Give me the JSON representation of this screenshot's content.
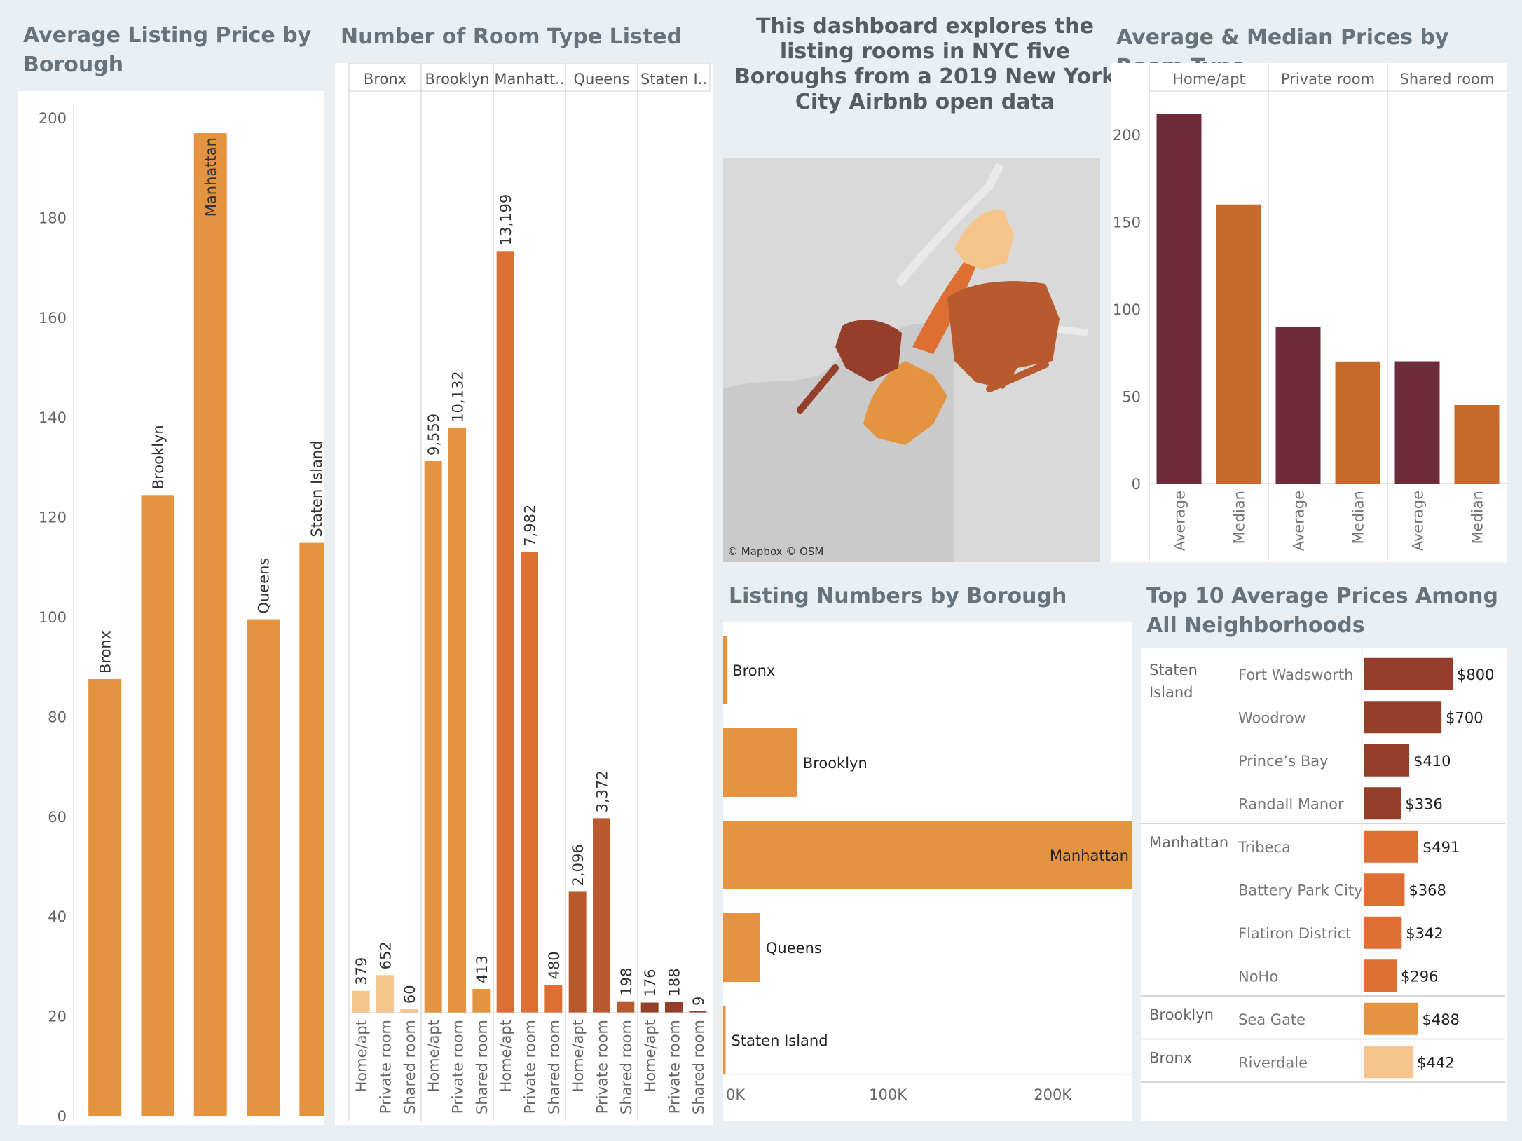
{
  "dashboard": {
    "intro_text": "This dashboard explores the listing rooms in NYC five Boroughs from a 2019 New York City Airbnb open data",
    "map_credit": "© Mapbox  © OSM",
    "colors": {
      "background": "#e9eff2",
      "orange": "#e49440",
      "light_orange": "#f5c58c",
      "mid_orange": "#dd6f34",
      "dark_orange": "#b85a2e",
      "brown_red": "#953f2b",
      "maroon": "#6e2c3a",
      "median_orange": "#c56a2c"
    }
  },
  "chart_data": [
    {
      "id": "avg_price_borough",
      "type": "bar",
      "title": "Average Listing Price by Borough",
      "categories": [
        "Bronx",
        "Brooklyn",
        "Manhattan",
        "Queens",
        "Staten Island"
      ],
      "values": [
        87.5,
        124.4,
        196.9,
        99.5,
        114.8
      ],
      "ylim": [
        0,
        200
      ],
      "yticks": [
        0,
        20,
        40,
        60,
        80,
        100,
        120,
        140,
        160,
        180,
        200
      ],
      "grid": false
    },
    {
      "id": "room_type_count",
      "type": "bar",
      "title": "Number of Room Type Listed",
      "groups": [
        {
          "label": "Bronx",
          "room_types": [
            "Home/apt",
            "Private room",
            "Shared room"
          ],
          "values": [
            379,
            652,
            60
          ],
          "value_labels": [
            "379",
            "652",
            "60"
          ]
        },
        {
          "label": "Brooklyn",
          "room_types": [
            "Home/apt",
            "Private room",
            "Shared room"
          ],
          "values": [
            9559,
            10132,
            413
          ],
          "value_labels": [
            "9,559",
            "10,132",
            "413"
          ]
        },
        {
          "label": "Manhatt..",
          "room_types": [
            "Home/apt",
            "Private room",
            "Shared room"
          ],
          "values": [
            13199,
            7982,
            480
          ],
          "value_labels": [
            "13,199",
            "7,982",
            "480"
          ]
        },
        {
          "label": "Queens",
          "room_types": [
            "Home/apt",
            "Private room",
            "Shared room"
          ],
          "values": [
            2096,
            3372,
            198
          ],
          "value_labels": [
            "2,096",
            "3,372",
            "198"
          ]
        },
        {
          "label": "Staten I..",
          "room_types": [
            "Home/apt",
            "Private room",
            "Shared room"
          ],
          "values": [
            176,
            188,
            9
          ],
          "value_labels": [
            "176",
            "188",
            "9"
          ]
        }
      ],
      "ylim": [
        0,
        15000
      ]
    },
    {
      "id": "avg_median_price_room_type",
      "type": "bar",
      "title": "Average & Median Prices by Room Type",
      "groups": [
        {
          "label": "Home/apt",
          "measures": [
            "Average",
            "Median"
          ],
          "values": [
            211.8,
            160
          ]
        },
        {
          "label": "Private room",
          "measures": [
            "Average",
            "Median"
          ],
          "values": [
            89.8,
            70
          ]
        },
        {
          "label": "Shared room",
          "measures": [
            "Average",
            "Median"
          ],
          "values": [
            70.1,
            45
          ]
        }
      ],
      "ylim": [
        0,
        225
      ],
      "yticks": [
        0,
        50,
        100,
        150,
        200
      ]
    },
    {
      "id": "listing_numbers_borough",
      "type": "bar",
      "orientation": "horizontal",
      "title": "Listing Numbers by Borough",
      "categories": [
        "Bronx",
        "Brooklyn",
        "Manhattan",
        "Queens",
        "Staten Island"
      ],
      "values": [
        2200,
        45000,
        248000,
        22500,
        1500
      ],
      "xlim": [
        0,
        248000
      ],
      "xticks": [
        0,
        100000,
        200000
      ],
      "xtick_labels": [
        "0K",
        "100K",
        "200K"
      ]
    },
    {
      "id": "top10_neighborhoods",
      "type": "bar",
      "orientation": "horizontal",
      "title": "Top 10 Average Prices Among All Neighborhoods",
      "sections": [
        {
          "borough": "Staten Island",
          "rows": [
            {
              "neighborhood": "Fort Wadsworth",
              "value": 800,
              "label": "$800"
            },
            {
              "neighborhood": "Woodrow",
              "value": 700,
              "label": "$700"
            },
            {
              "neighborhood": "Prince’s Bay",
              "value": 410,
              "label": "$410"
            },
            {
              "neighborhood": "Randall Manor",
              "value": 336,
              "label": "$336"
            }
          ]
        },
        {
          "borough": "Manhattan",
          "rows": [
            {
              "neighborhood": "Tribeca",
              "value": 491,
              "label": "$491"
            },
            {
              "neighborhood": "Battery Park City",
              "value": 368,
              "label": "$368"
            },
            {
              "neighborhood": "Flatiron District",
              "value": 342,
              "label": "$342"
            },
            {
              "neighborhood": "NoHo",
              "value": 296,
              "label": "$296"
            }
          ]
        },
        {
          "borough": "Brooklyn",
          "rows": [
            {
              "neighborhood": "Sea Gate",
              "value": 488,
              "label": "$488"
            }
          ]
        },
        {
          "borough": "Bronx",
          "rows": [
            {
              "neighborhood": "Riverdale",
              "value": 442,
              "label": "$442"
            }
          ]
        }
      ],
      "xlim": [
        0,
        800
      ]
    }
  ]
}
